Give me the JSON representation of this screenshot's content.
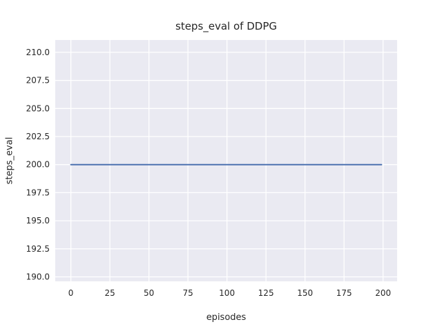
{
  "chart_data": {
    "type": "line",
    "title": "steps_eval of DDPG",
    "xlabel": "episodes",
    "ylabel": "steps_eval",
    "xlim": [
      -10,
      209
    ],
    "ylim": [
      189.6,
      211.1
    ],
    "xticks": [
      0,
      25,
      50,
      75,
      100,
      125,
      150,
      175,
      200
    ],
    "xtick_labels": [
      "0",
      "25",
      "50",
      "75",
      "100",
      "125",
      "150",
      "175",
      "200"
    ],
    "yticks": [
      190.0,
      192.5,
      195.0,
      197.5,
      200.0,
      202.5,
      205.0,
      207.5,
      210.0
    ],
    "ytick_labels": [
      "190.0",
      "192.5",
      "195.0",
      "197.5",
      "200.0",
      "202.5",
      "205.0",
      "207.5",
      "210.0"
    ],
    "grid": true,
    "legend_position": "none",
    "axes_background": "#eaeaf2",
    "gridline_color": "#ffffff",
    "text_color": "#262626",
    "series": [
      {
        "name": "steps_eval",
        "color": "#4c72b0",
        "x": [
          0,
          199
        ],
        "y": [
          200,
          200
        ],
        "note": "constant value 200 for all episodes from 0 to 199"
      }
    ]
  }
}
